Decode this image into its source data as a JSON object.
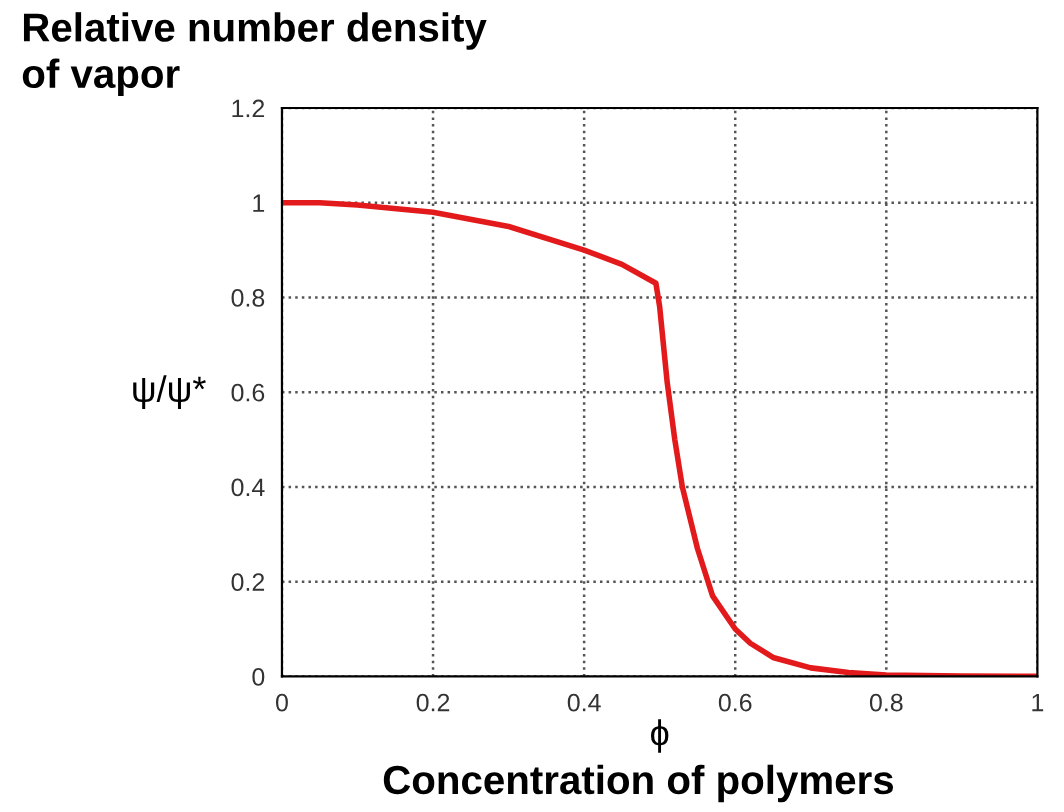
{
  "chart_data": {
    "type": "line",
    "title": "Relative number density\nof vapor",
    "xlabel": "ϕ",
    "ylabel": "ψ/ψ*",
    "annotations": [
      "Concentration of polymers"
    ],
    "x": [
      0,
      0.05,
      0.1,
      0.2,
      0.3,
      0.4,
      0.45,
      0.495,
      0.5,
      0.51,
      0.52,
      0.53,
      0.55,
      0.57,
      0.6,
      0.62,
      0.65,
      0.7,
      0.75,
      0.8,
      0.9,
      1.0
    ],
    "series": [
      {
        "color": "#e31a1c",
        "values": [
          1.0,
          1.0,
          0.995,
          0.98,
          0.95,
          0.9,
          0.87,
          0.83,
          0.78,
          0.62,
          0.5,
          0.4,
          0.27,
          0.17,
          0.1,
          0.07,
          0.04,
          0.018,
          0.008,
          0.003,
          0.001,
          0
        ]
      }
    ],
    "xlim": [
      0,
      1
    ],
    "ylim": [
      0,
      1.2
    ],
    "xticks": [
      0,
      0.2,
      0.4,
      0.6,
      0.8,
      1
    ],
    "yticks": [
      0,
      0.2,
      0.4,
      0.6,
      0.8,
      1,
      1.2
    ],
    "grid": true,
    "line_style": "solid",
    "marker": "none"
  }
}
